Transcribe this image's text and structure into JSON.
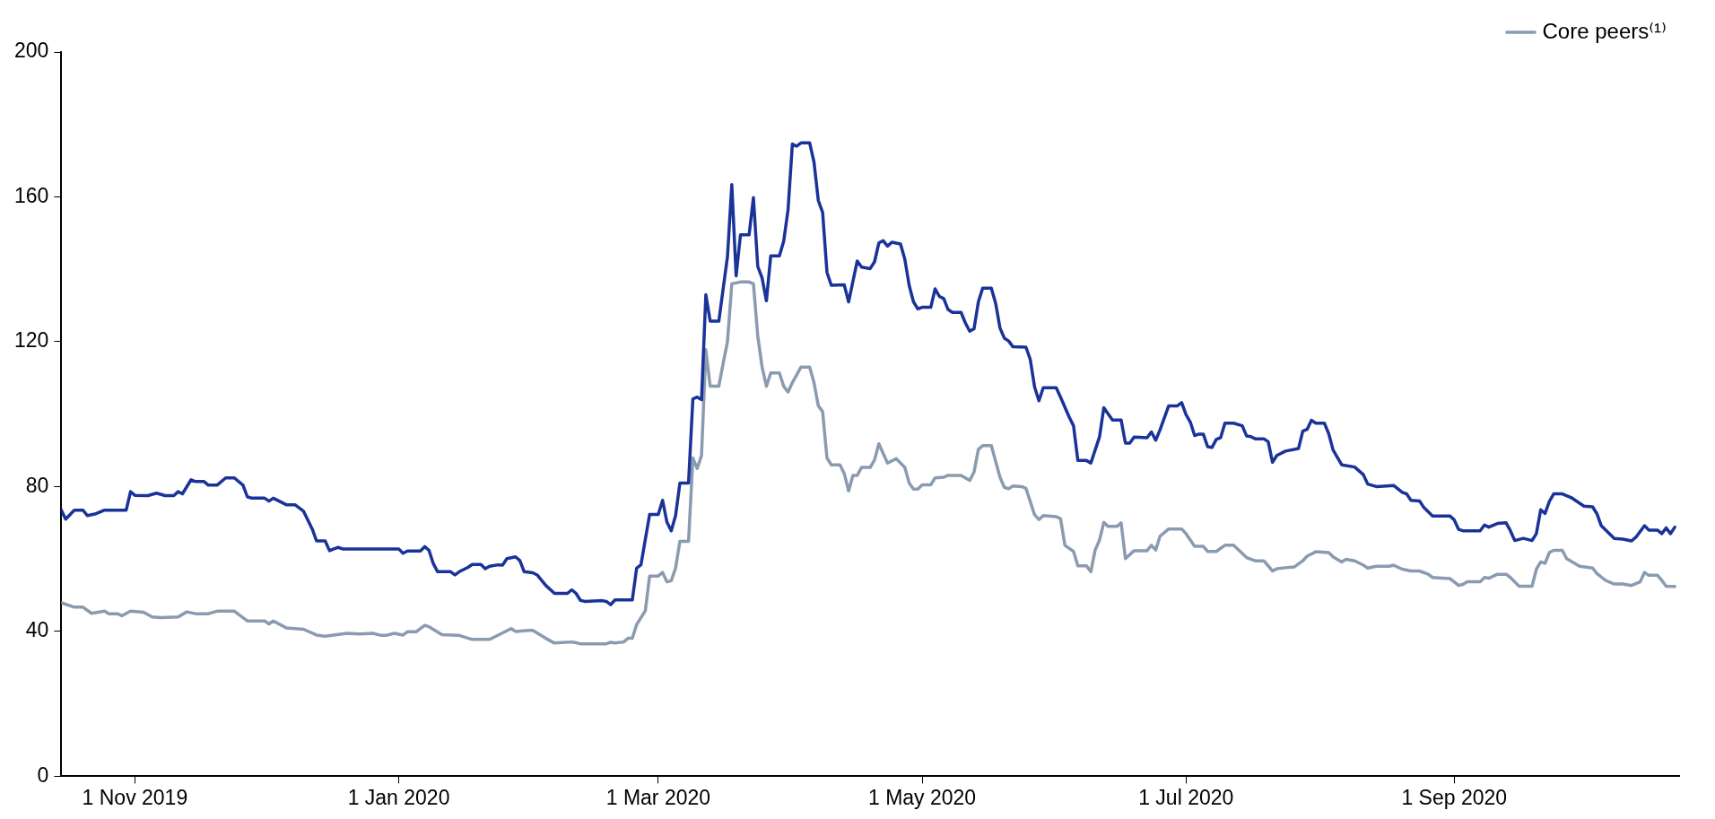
{
  "chart_data": {
    "type": "line",
    "xlim": [
      "2019-10-15",
      "2020-10-23"
    ],
    "xticks": [
      {
        "value": "2019-11-01",
        "label": "1 Nov 2019"
      },
      {
        "value": "2020-01-01",
        "label": "1 Jan 2020"
      },
      {
        "value": "2020-03-01",
        "label": "1 Mar 2020"
      },
      {
        "value": "2020-05-01",
        "label": "1 May 2020"
      },
      {
        "value": "2020-07-01",
        "label": "1 Jul 2020"
      },
      {
        "value": "2020-09-01",
        "label": "1 Sep 2020"
      }
    ],
    "ylim": [
      0,
      200
    ],
    "yticks": [
      0,
      40,
      80,
      120,
      160,
      200
    ],
    "grid": false,
    "legend": "top right",
    "marker": "none",
    "line_style": "solid",
    "series": [
      {
        "color": "#1a3399",
        "x": [
          "2019-10-15",
          "2019-10-16",
          "2019-10-18",
          "2019-10-20",
          "2019-10-21",
          "2019-10-23",
          "2019-10-25",
          "2019-10-30",
          "2019-10-31",
          "2019-11-01",
          "2019-11-04",
          "2019-11-06",
          "2019-11-08",
          "2019-11-10",
          "2019-11-11",
          "2019-11-12",
          "2019-11-14",
          "2019-11-15",
          "2019-11-17",
          "2019-11-18",
          "2019-11-20",
          "2019-11-22",
          "2019-11-24",
          "2019-11-26",
          "2019-11-27",
          "2019-11-28",
          "2019-12-01",
          "2019-12-02",
          "2019-12-03",
          "2019-12-06",
          "2019-12-08",
          "2019-12-10",
          "2019-12-12",
          "2019-12-13",
          "2019-12-15",
          "2019-12-16",
          "2019-12-17",
          "2019-12-18",
          "2019-12-19",
          "2020-01-01",
          "2020-01-02",
          "2020-01-03",
          "2020-01-06",
          "2020-01-07",
          "2020-01-08",
          "2020-01-09",
          "2020-01-10",
          "2020-01-13",
          "2020-01-14",
          "2020-01-15",
          "2020-01-17",
          "2020-01-18",
          "2020-01-20",
          "2020-01-21",
          "2020-01-22",
          "2020-01-24",
          "2020-01-25",
          "2020-01-26",
          "2020-01-28",
          "2020-01-29",
          "2020-01-30",
          "2020-02-01",
          "2020-02-02",
          "2020-02-04",
          "2020-02-06",
          "2020-02-09",
          "2020-02-10",
          "2020-02-11",
          "2020-02-12",
          "2020-02-13",
          "2020-02-17",
          "2020-02-18",
          "2020-02-19",
          "2020-02-20",
          "2020-02-24",
          "2020-02-25",
          "2020-02-26",
          "2020-02-28",
          "2020-03-01",
          "2020-03-02",
          "2020-03-03",
          "2020-03-04",
          "2020-03-05",
          "2020-03-06",
          "2020-03-08",
          "2020-03-09",
          "2020-03-10",
          "2020-03-11",
          "2020-03-12",
          "2020-03-13",
          "2020-03-15",
          "2020-03-17",
          "2020-03-18",
          "2020-03-19",
          "2020-03-20",
          "2020-03-22",
          "2020-03-23",
          "2020-03-24",
          "2020-03-25",
          "2020-03-26",
          "2020-03-27",
          "2020-03-29",
          "2020-03-30",
          "2020-03-31",
          "2020-04-01",
          "2020-04-02",
          "2020-04-03",
          "2020-04-05",
          "2020-04-06",
          "2020-04-07",
          "2020-04-08",
          "2020-04-09",
          "2020-04-10",
          "2020-04-13",
          "2020-04-14",
          "2020-04-16",
          "2020-04-17",
          "2020-04-19",
          "2020-04-20",
          "2020-04-21",
          "2020-04-22",
          "2020-04-23",
          "2020-04-24",
          "2020-04-26",
          "2020-04-27",
          "2020-04-28",
          "2020-04-29",
          "2020-04-30",
          "2020-05-01",
          "2020-05-03",
          "2020-05-04",
          "2020-05-05",
          "2020-05-06",
          "2020-05-07",
          "2020-05-08",
          "2020-05-10",
          "2020-05-11",
          "2020-05-12",
          "2020-05-13",
          "2020-05-14",
          "2020-05-15",
          "2020-05-17",
          "2020-05-18",
          "2020-05-19",
          "2020-05-20",
          "2020-05-21",
          "2020-05-22",
          "2020-05-25",
          "2020-05-26",
          "2020-05-27",
          "2020-05-28",
          "2020-05-29",
          "2020-06-01",
          "2020-06-02",
          "2020-06-04",
          "2020-06-05",
          "2020-06-06",
          "2020-06-08",
          "2020-06-09",
          "2020-06-11",
          "2020-06-12",
          "2020-06-14",
          "2020-06-16",
          "2020-06-17",
          "2020-06-18",
          "2020-06-19",
          "2020-06-22",
          "2020-06-23",
          "2020-06-24",
          "2020-06-25",
          "2020-06-27",
          "2020-06-29",
          "2020-06-30",
          "2020-07-01",
          "2020-07-02",
          "2020-07-03",
          "2020-07-04",
          "2020-07-05",
          "2020-07-06",
          "2020-07-07",
          "2020-07-08",
          "2020-07-09",
          "2020-07-10",
          "2020-07-12",
          "2020-07-14",
          "2020-07-15",
          "2020-07-16",
          "2020-07-17",
          "2020-07-19",
          "2020-07-20",
          "2020-07-21",
          "2020-07-22",
          "2020-07-24",
          "2020-07-27",
          "2020-07-28",
          "2020-07-29",
          "2020-07-30",
          "2020-07-31",
          "2020-08-02",
          "2020-08-03",
          "2020-08-04",
          "2020-08-06",
          "2020-08-09",
          "2020-08-11",
          "2020-08-12",
          "2020-08-14",
          "2020-08-18",
          "2020-08-20",
          "2020-08-21",
          "2020-08-22",
          "2020-08-24",
          "2020-08-25",
          "2020-08-27",
          "2020-08-31",
          "2020-09-01",
          "2020-09-02",
          "2020-09-03",
          "2020-09-07",
          "2020-09-08",
          "2020-09-09",
          "2020-09-11",
          "2020-09-13",
          "2020-09-14",
          "2020-09-15",
          "2020-09-17",
          "2020-09-19",
          "2020-09-20",
          "2020-09-21",
          "2020-09-22",
          "2020-09-23",
          "2020-09-24",
          "2020-09-26",
          "2020-09-28",
          "2020-10-01",
          "2020-10-03",
          "2020-10-04",
          "2020-10-05",
          "2020-10-08",
          "2020-10-10",
          "2020-10-12",
          "2020-10-13",
          "2020-10-15",
          "2020-10-16",
          "2020-10-18",
          "2020-10-19",
          "2020-10-20",
          "2020-10-21",
          "2020-10-22"
        ],
        "values": [
          73.5,
          71,
          73.5,
          73.5,
          72,
          72.5,
          73.5,
          73.5,
          78.6,
          77.6,
          77.5,
          78.2,
          77.5,
          77.5,
          78.6,
          78,
          81.9,
          81.4,
          81.4,
          80.4,
          80.4,
          82.4,
          82.4,
          80.4,
          77.2,
          76.8,
          76.8,
          76,
          76.8,
          75,
          75,
          73.2,
          68.3,
          65,
          65,
          62.3,
          62.8,
          63.2,
          62.8,
          62.8,
          61.6,
          62.2,
          62.2,
          63.4,
          62.4,
          58.7,
          56.5,
          56.5,
          55.6,
          56.5,
          57.7,
          58.5,
          58.5,
          57.3,
          58,
          58.4,
          58.3,
          60.1,
          60.6,
          59.6,
          56.5,
          56.2,
          55.6,
          52.7,
          50.5,
          50.5,
          51.5,
          50.5,
          48.6,
          48.3,
          48.5,
          48.3,
          47.4,
          48.7,
          48.7,
          57.5,
          58.4,
          72.3,
          72.3,
          76.2,
          70.2,
          67.8,
          72,
          81,
          81,
          104.2,
          104.7,
          104,
          133,
          125.7,
          125.7,
          143.5,
          163.4,
          138.2,
          149.5,
          149.5,
          159.8,
          140.8,
          137.6,
          131.3,
          143.7,
          143.7,
          147.8,
          156.4,
          174.6,
          174,
          174.9,
          174.9,
          169.6,
          159,
          155.7,
          139.2,
          135.6,
          135.7,
          131,
          142.3,
          140.6,
          140.2,
          142.1,
          147.3,
          147.9,
          146.4,
          147.5,
          147,
          142.8,
          135.6,
          131,
          129.1,
          129.5,
          129.5,
          134.6,
          132.5,
          131.9,
          128.9,
          128.1,
          128.1,
          125.2,
          122.9,
          123.6,
          131,
          134.8,
          134.8,
          130.6,
          123.8,
          121,
          120.2,
          118.6,
          118.5,
          115.1,
          107.5,
          103.7,
          107.3,
          107.3,
          104.7,
          99.2,
          96.8,
          87.2,
          87.2,
          86.5,
          93.7,
          101.8,
          98.4,
          98.4,
          92,
          92,
          93.7,
          93.5,
          95.1,
          92.8,
          95.7,
          102.3,
          102.3,
          103.2,
          99.9,
          97.8,
          94.1,
          94.5,
          94.5,
          91,
          90.8,
          93,
          93.5,
          97.5,
          97.5,
          96.8,
          94,
          93.8,
          93.2,
          93.2,
          92.4,
          86.7,
          88.6,
          89.8,
          90.5,
          95.3,
          95.8,
          98.3,
          97.5,
          97.5,
          94.6,
          90.1,
          86,
          85.4,
          83.3,
          80.7,
          80,
          80.3,
          78.4,
          78,
          76.2,
          76,
          74.2,
          71.9,
          71.9,
          70.8,
          68.2,
          67.8,
          67.8,
          69.4,
          68.8,
          69.8,
          70,
          67.8,
          65.1,
          65.7,
          65.1,
          67,
          73.6,
          72.6,
          75.9,
          78,
          78,
          77,
          74.6,
          74.4,
          72.5,
          69.2,
          65.7,
          65.5,
          65,
          66,
          69.2,
          68,
          68,
          67,
          68.6,
          67,
          68.8
        ]
      },
      {
        "name": "Core peers⁽¹⁾",
        "color": "#8a9bb0",
        "x": [
          "2019-10-15",
          "2019-10-18",
          "2019-10-20",
          "2019-10-22",
          "2019-10-25",
          "2019-10-26",
          "2019-10-28",
          "2019-10-29",
          "2019-10-31",
          "2019-11-03",
          "2019-11-05",
          "2019-11-07",
          "2019-11-11",
          "2019-11-13",
          "2019-11-15",
          "2019-11-18",
          "2019-11-20",
          "2019-11-24",
          "2019-11-27",
          "2019-12-01",
          "2019-12-02",
          "2019-12-03",
          "2019-12-06",
          "2019-12-08",
          "2019-12-10",
          "2019-12-13",
          "2019-12-15",
          "2019-12-20",
          "2019-12-23",
          "2019-12-26",
          "2019-12-28",
          "2019-12-29",
          "2019-12-31",
          "2020-01-02",
          "2020-01-03",
          "2020-01-05",
          "2020-01-07",
          "2020-01-08",
          "2020-01-11",
          "2020-01-15",
          "2020-01-18",
          "2020-01-22",
          "2020-01-24",
          "2020-01-27",
          "2020-01-28",
          "2020-01-31",
          "2020-02-01",
          "2020-02-04",
          "2020-02-06",
          "2020-02-10",
          "2020-02-11",
          "2020-02-12",
          "2020-02-18",
          "2020-02-19",
          "2020-02-20",
          "2020-02-22",
          "2020-02-23",
          "2020-02-24",
          "2020-02-25",
          "2020-02-27",
          "2020-02-28",
          "2020-03-01",
          "2020-03-02",
          "2020-03-03",
          "2020-03-04",
          "2020-03-05",
          "2020-03-06",
          "2020-03-08",
          "2020-03-09",
          "2020-03-10",
          "2020-03-11",
          "2020-03-12",
          "2020-03-13",
          "2020-03-15",
          "2020-03-16",
          "2020-03-17",
          "2020-03-18",
          "2020-03-20",
          "2020-03-22",
          "2020-03-23",
          "2020-03-24",
          "2020-03-25",
          "2020-03-26",
          "2020-03-27",
          "2020-03-29",
          "2020-03-30",
          "2020-03-31",
          "2020-04-01",
          "2020-04-03",
          "2020-04-05",
          "2020-04-06",
          "2020-04-07",
          "2020-04-08",
          "2020-04-09",
          "2020-04-10",
          "2020-04-12",
          "2020-04-13",
          "2020-04-14",
          "2020-04-15",
          "2020-04-16",
          "2020-04-17",
          "2020-04-19",
          "2020-04-20",
          "2020-04-21",
          "2020-04-23",
          "2020-04-25",
          "2020-04-27",
          "2020-04-28",
          "2020-04-29",
          "2020-04-30",
          "2020-05-01",
          "2020-05-03",
          "2020-05-04",
          "2020-05-06",
          "2020-05-07",
          "2020-05-10",
          "2020-05-12",
          "2020-05-13",
          "2020-05-14",
          "2020-05-15",
          "2020-05-17",
          "2020-05-19",
          "2020-05-20",
          "2020-05-21",
          "2020-05-22",
          "2020-05-24",
          "2020-05-25",
          "2020-05-27",
          "2020-05-28",
          "2020-05-29",
          "2020-06-01",
          "2020-06-02",
          "2020-06-03",
          "2020-06-05",
          "2020-06-06",
          "2020-06-08",
          "2020-06-09",
          "2020-06-10",
          "2020-06-11",
          "2020-06-12",
          "2020-06-13",
          "2020-06-15",
          "2020-06-16",
          "2020-06-17",
          "2020-06-19",
          "2020-06-22",
          "2020-06-23",
          "2020-06-24",
          "2020-06-25",
          "2020-06-27",
          "2020-06-30",
          "2020-07-01",
          "2020-07-03",
          "2020-07-05",
          "2020-07-06",
          "2020-07-08",
          "2020-07-10",
          "2020-07-12",
          "2020-07-15",
          "2020-07-17",
          "2020-07-19",
          "2020-07-21",
          "2020-07-22",
          "2020-07-24",
          "2020-07-26",
          "2020-07-28",
          "2020-07-29",
          "2020-07-31",
          "2020-08-03",
          "2020-08-04",
          "2020-08-06",
          "2020-08-07",
          "2020-08-09",
          "2020-08-11",
          "2020-08-12",
          "2020-08-14",
          "2020-08-17",
          "2020-08-18",
          "2020-08-20",
          "2020-08-22",
          "2020-08-24",
          "2020-08-26",
          "2020-08-27",
          "2020-08-31",
          "2020-09-01",
          "2020-09-02",
          "2020-09-03",
          "2020-09-04",
          "2020-09-07",
          "2020-09-08",
          "2020-09-09",
          "2020-09-11",
          "2020-09-13",
          "2020-09-14",
          "2020-09-15",
          "2020-09-16",
          "2020-09-19",
          "2020-09-20",
          "2020-09-21",
          "2020-09-22",
          "2020-09-23",
          "2020-09-24",
          "2020-09-26",
          "2020-09-27",
          "2020-09-30",
          "2020-10-03",
          "2020-10-04",
          "2020-10-06",
          "2020-10-08",
          "2020-10-10",
          "2020-10-12",
          "2020-10-14",
          "2020-10-15",
          "2020-10-16",
          "2020-10-18",
          "2020-10-19",
          "2020-10-20",
          "2020-10-22"
        ],
        "values": [
          47.9,
          46.7,
          46.7,
          45,
          45.6,
          44.9,
          44.9,
          44.3,
          45.6,
          45.3,
          44,
          43.8,
          44,
          45.4,
          44.9,
          44.9,
          45.6,
          45.6,
          42.9,
          42.9,
          42.1,
          42.9,
          41,
          40.8,
          40.6,
          39,
          38.7,
          39.5,
          39.3,
          39.5,
          38.9,
          38.9,
          39.5,
          39,
          39.9,
          39.9,
          41.7,
          41.3,
          39.1,
          38.9,
          37.8,
          37.8,
          39,
          40.8,
          40,
          40.3,
          40.3,
          38.1,
          36.8,
          37.1,
          36.9,
          36.6,
          36.6,
          37,
          36.8,
          37.1,
          38.1,
          38.1,
          41.9,
          45.7,
          55.3,
          55.3,
          56.3,
          53.7,
          54,
          57.5,
          64.9,
          64.9,
          87.9,
          85,
          88.6,
          117.8,
          107.7,
          107.7,
          114,
          120,
          136,
          136.5,
          136.5,
          136,
          121.6,
          113,
          107.7,
          111.4,
          111.4,
          107.7,
          106.1,
          108.7,
          113,
          113,
          108.7,
          102.3,
          100.7,
          87.9,
          86,
          86,
          83.6,
          78.8,
          83.1,
          83.1,
          85.3,
          85.3,
          87.4,
          91.8,
          86.5,
          87.7,
          85.3,
          81,
          79.3,
          79.3,
          80.5,
          80.5,
          82.4,
          82.6,
          83.1,
          83.1,
          81.7,
          84,
          90.3,
          91.3,
          91.3,
          82.6,
          79.8,
          79.4,
          80.2,
          80,
          79.5,
          72.2,
          70.9,
          72,
          71.7,
          71.1,
          63.8,
          62.1,
          58.1,
          58.1,
          56.5,
          62.5,
          65.2,
          70.1,
          69,
          69,
          70,
          60.1,
          62.3,
          62.3,
          63.8,
          62.5,
          66.3,
          68.3,
          68.3,
          67,
          63.5,
          63.5,
          62.1,
          62.1,
          63.8,
          63.8,
          60.4,
          59.5,
          59.5,
          56.7,
          57.3,
          57.6,
          57.8,
          59.5,
          60.8,
          62,
          61.8,
          60.6,
          59.2,
          59.9,
          59.5,
          58.3,
          57.5,
          58,
          58,
          58.3,
          57.2,
          56.7,
          56.7,
          55.8,
          54.9,
          54.6,
          53.7,
          52.7,
          53,
          53.7,
          53.7,
          54.9,
          54.7,
          55.8,
          55.8,
          54.9,
          53.7,
          52.5,
          52.5,
          57.2,
          59.2,
          58.8,
          61.8,
          62.4,
          62.4,
          60.1,
          58,
          57.5,
          56,
          54.1,
          53.1,
          53.1,
          52.7,
          53.7,
          56.3,
          55.5,
          55.5,
          54.1,
          52.5,
          52.4
        ]
      }
    ]
  }
}
